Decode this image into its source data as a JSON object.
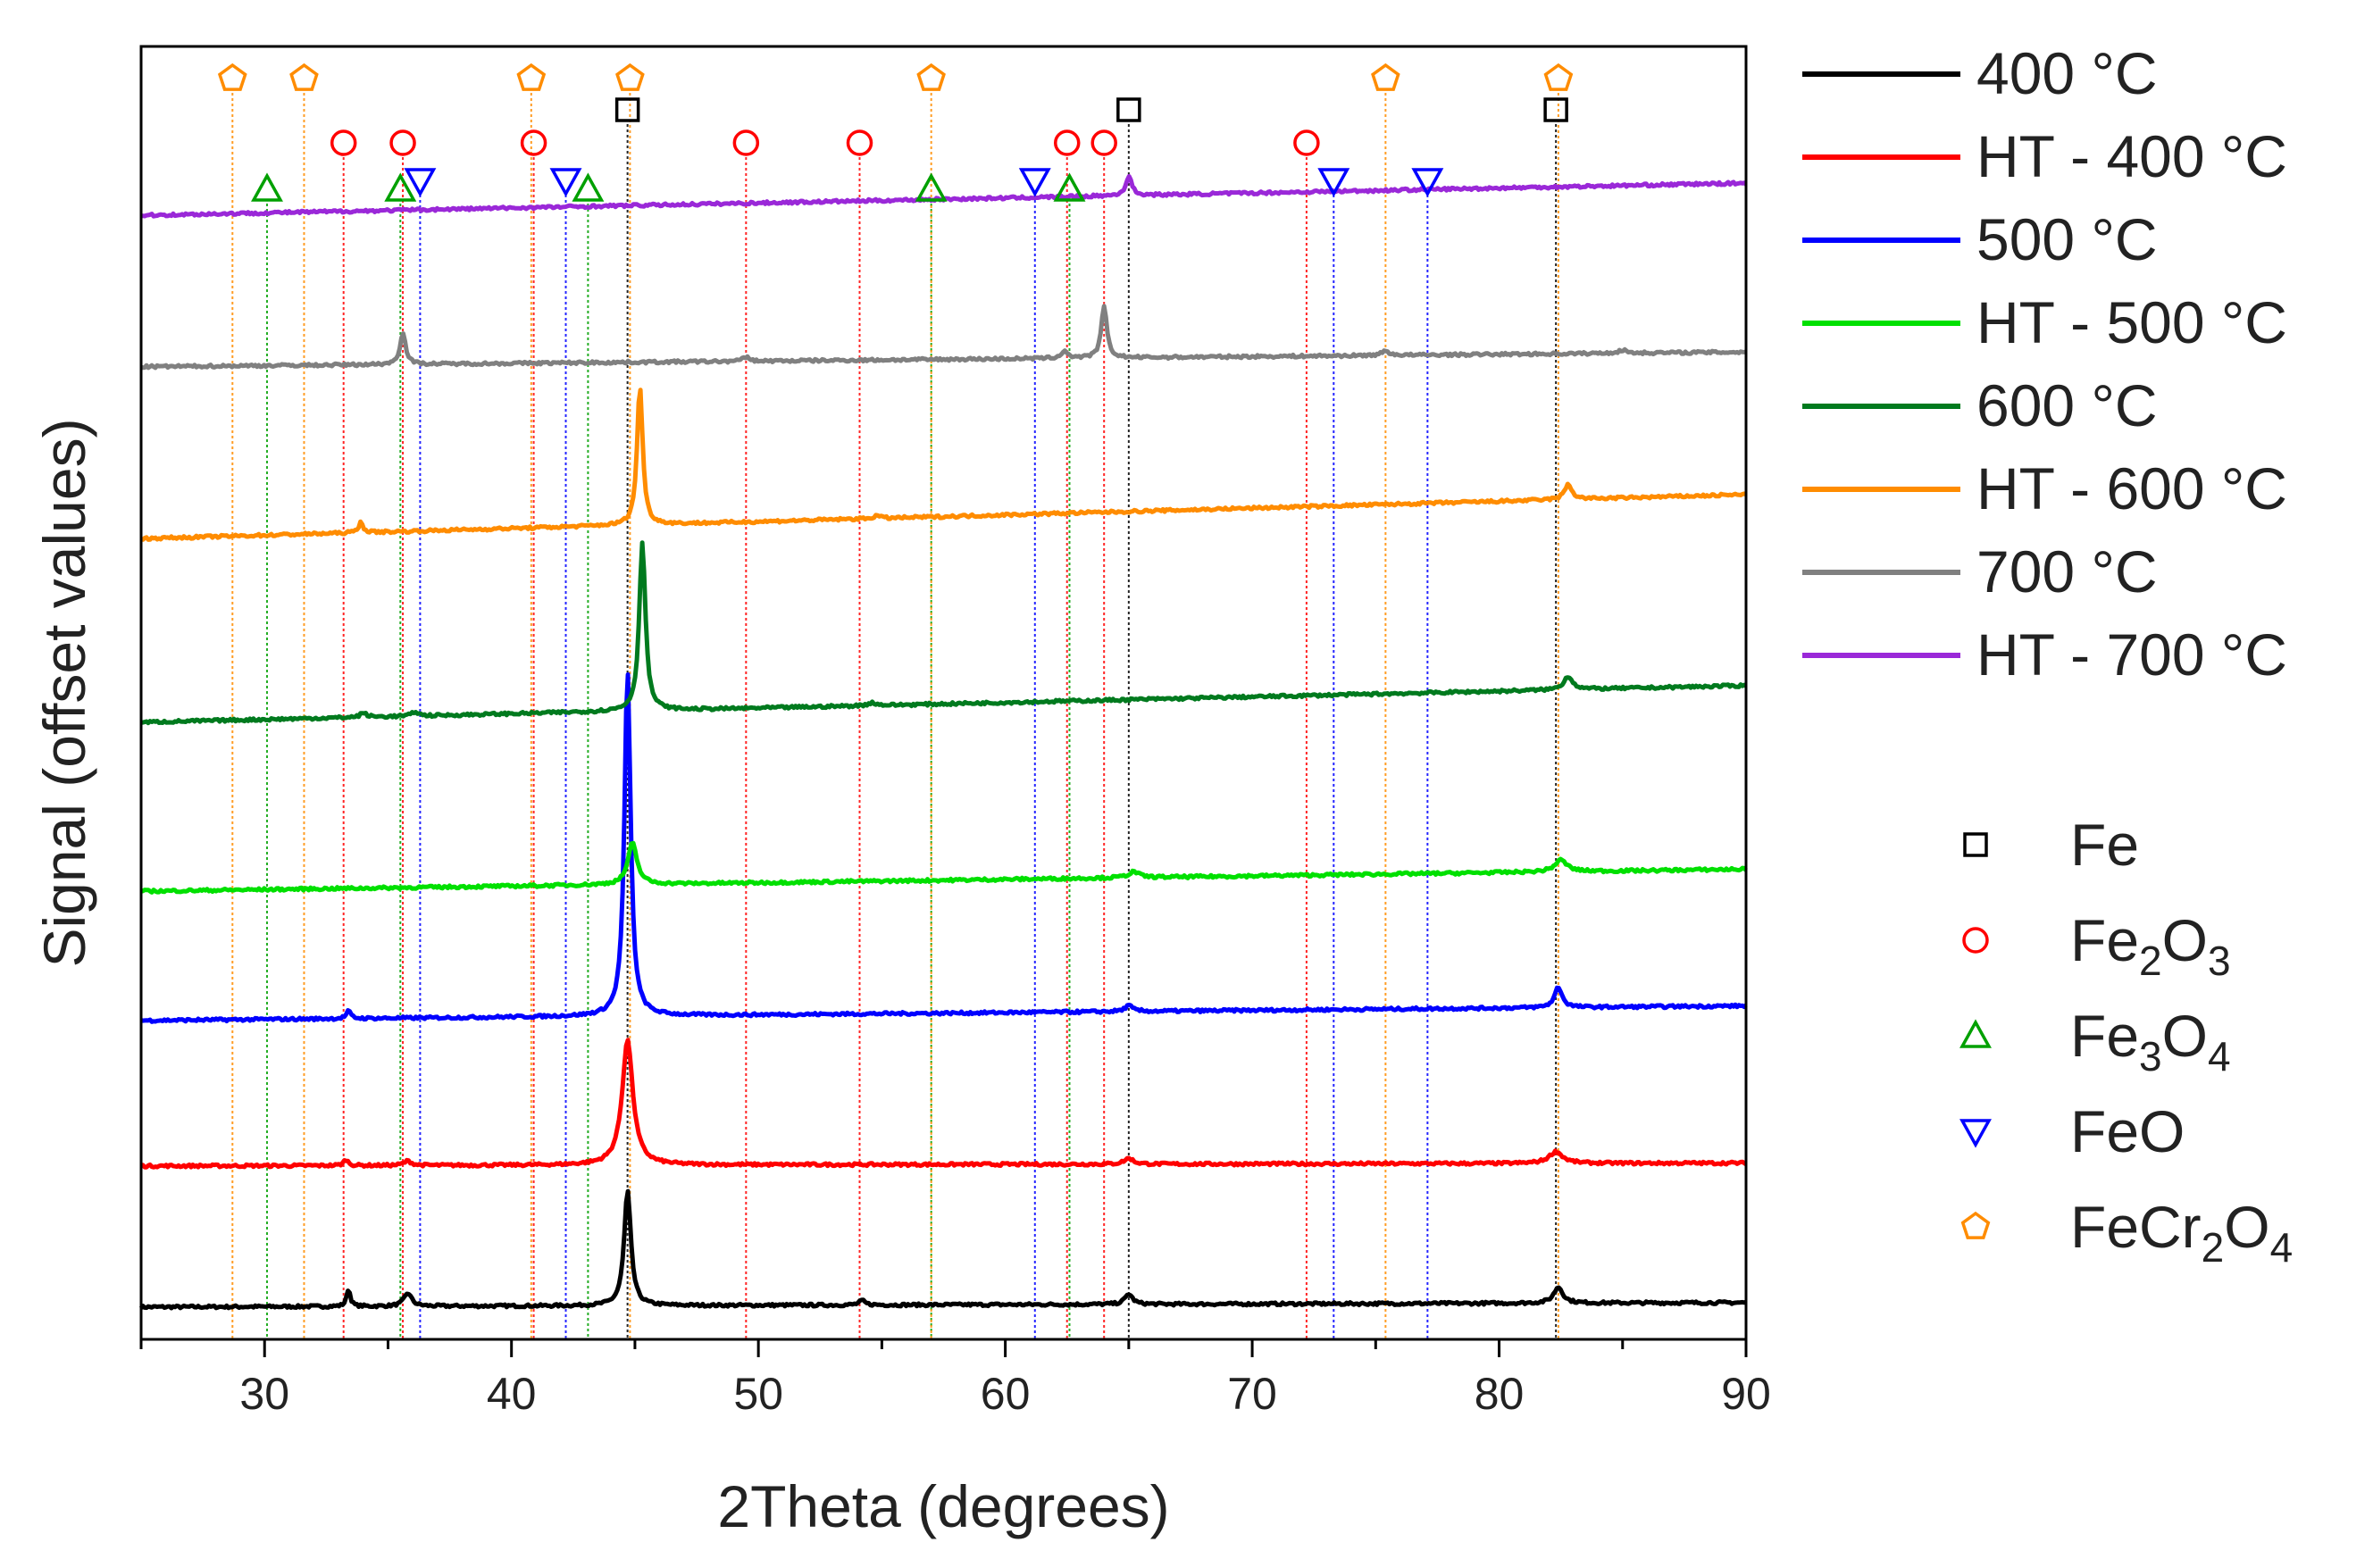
{
  "chart_data": {
    "type": "line",
    "title": "",
    "xlabel": "2Theta (degrees)",
    "ylabel": "Signal (offset values)",
    "xlim": [
      25,
      90
    ],
    "ylim": [
      0,
      8.8
    ],
    "xticks": [
      30,
      40,
      50,
      60,
      70,
      80,
      90
    ],
    "xtick_labels": [
      "30",
      "40",
      "50",
      "60",
      "70",
      "80",
      "90"
    ],
    "yticks_shown": false,
    "series": [
      {
        "name": "400 °C",
        "color": "#000000",
        "baseline": [
          0.22,
          0.25
        ],
        "peaks": [
          [
            33.4,
            0.12,
            0.12
          ],
          [
            35.8,
            0.09,
            0.25
          ],
          [
            44.7,
            0.78,
            0.22
          ],
          [
            54.2,
            0.03,
            0.2
          ],
          [
            65.0,
            0.07,
            0.25
          ],
          [
            82.4,
            0.11,
            0.3
          ]
        ]
      },
      {
        "name": "HT - 400 °C",
        "color": "#ff0000",
        "baseline": [
          1.18,
          1.2
        ],
        "peaks": [
          [
            33.3,
            0.04,
            0.15
          ],
          [
            35.8,
            0.03,
            0.25
          ],
          [
            44.7,
            0.85,
            0.35
          ],
          [
            65.0,
            0.04,
            0.3
          ],
          [
            82.3,
            0.08,
            0.45
          ]
        ]
      },
      {
        "name": "500 °C",
        "color": "#0000ff",
        "baseline": [
          2.17,
          2.27
        ],
        "peaks": [
          [
            33.4,
            0.05,
            0.15
          ],
          [
            44.7,
            2.35,
            0.2
          ],
          [
            65.0,
            0.04,
            0.25
          ],
          [
            82.4,
            0.14,
            0.25
          ]
        ]
      },
      {
        "name": "HT - 500 °C",
        "color": "#00e000",
        "baseline": [
          3.05,
          3.2
        ],
        "peaks": [
          [
            44.9,
            0.28,
            0.3
          ],
          [
            65.2,
            0.04,
            0.35
          ],
          [
            82.5,
            0.08,
            0.4
          ]
        ]
      },
      {
        "name": "600 °C",
        "color": "#007a1e",
        "baseline": [
          4.2,
          4.45
        ],
        "peaks": [
          [
            34.0,
            0.03,
            0.2
          ],
          [
            36.1,
            0.03,
            0.2
          ],
          [
            45.3,
            1.15,
            0.2
          ],
          [
            54.6,
            0.02,
            0.25
          ],
          [
            82.8,
            0.09,
            0.3
          ]
        ]
      },
      {
        "name": "HT - 600 °C",
        "color": "#ff8c00",
        "baseline": [
          5.45,
          5.75
        ],
        "peaks": [
          [
            33.9,
            0.07,
            0.15
          ],
          [
            45.2,
            0.95,
            0.18
          ],
          [
            54.8,
            0.02,
            0.2
          ],
          [
            82.8,
            0.1,
            0.25
          ]
        ]
      },
      {
        "name": "700 °C",
        "color": "#808080",
        "baseline": [
          6.62,
          6.72
        ],
        "peaks": [
          [
            35.6,
            0.22,
            0.18
          ],
          [
            49.5,
            0.03,
            0.2
          ],
          [
            62.4,
            0.05,
            0.2
          ],
          [
            64.0,
            0.35,
            0.18
          ],
          [
            75.4,
            0.03,
            0.25
          ],
          [
            85.0,
            0.02,
            0.3
          ]
        ]
      },
      {
        "name": "HT - 700 °C",
        "color": "#9a28d8",
        "baseline": [
          7.65,
          7.87
        ],
        "peaks": [
          [
            65.0,
            0.13,
            0.2
          ]
        ]
      }
    ],
    "legend_position": "right",
    "marker_legend": [
      {
        "phase": "Fe",
        "symbol": "square",
        "color": "#000000",
        "name_base": "Fe",
        "subscripts": []
      },
      {
        "phase": "Fe2O3",
        "symbol": "circle",
        "color": "#ff0000",
        "name_base": "Fe",
        "subscripts": [
          [
            "2",
            "O"
          ],
          [
            "3",
            ""
          ]
        ]
      },
      {
        "phase": "Fe3O4",
        "symbol": "triangle-up",
        "color": "#00a000",
        "name_base": "Fe",
        "subscripts": [
          [
            "3",
            "O"
          ],
          [
            "4",
            ""
          ]
        ]
      },
      {
        "phase": "FeO",
        "symbol": "triangle-down",
        "color": "#0000ff",
        "name_base": "FeO",
        "subscripts": []
      },
      {
        "phase": "FeCr2O4",
        "symbol": "pentagon",
        "color": "#ff8c00",
        "name_base": "FeCr",
        "subscripts": [
          [
            "2",
            "O"
          ],
          [
            "4",
            ""
          ]
        ]
      }
    ],
    "reference_peaks": [
      {
        "phase": "Fe",
        "positions": [
          44.7,
          65.0,
          82.3
        ]
      },
      {
        "phase": "Fe2O3",
        "positions": [
          33.2,
          35.6,
          40.9,
          49.5,
          54.1,
          62.5,
          64.0,
          72.2
        ]
      },
      {
        "phase": "Fe3O4",
        "positions": [
          30.1,
          35.5,
          43.1,
          57.0,
          62.6
        ]
      },
      {
        "phase": "FeO",
        "positions": [
          36.3,
          42.2,
          61.2,
          73.3,
          77.1
        ]
      },
      {
        "phase": "FeCr2O4",
        "positions": [
          28.7,
          31.6,
          40.8,
          44.8,
          57.0,
          75.4,
          82.4
        ]
      }
    ]
  }
}
